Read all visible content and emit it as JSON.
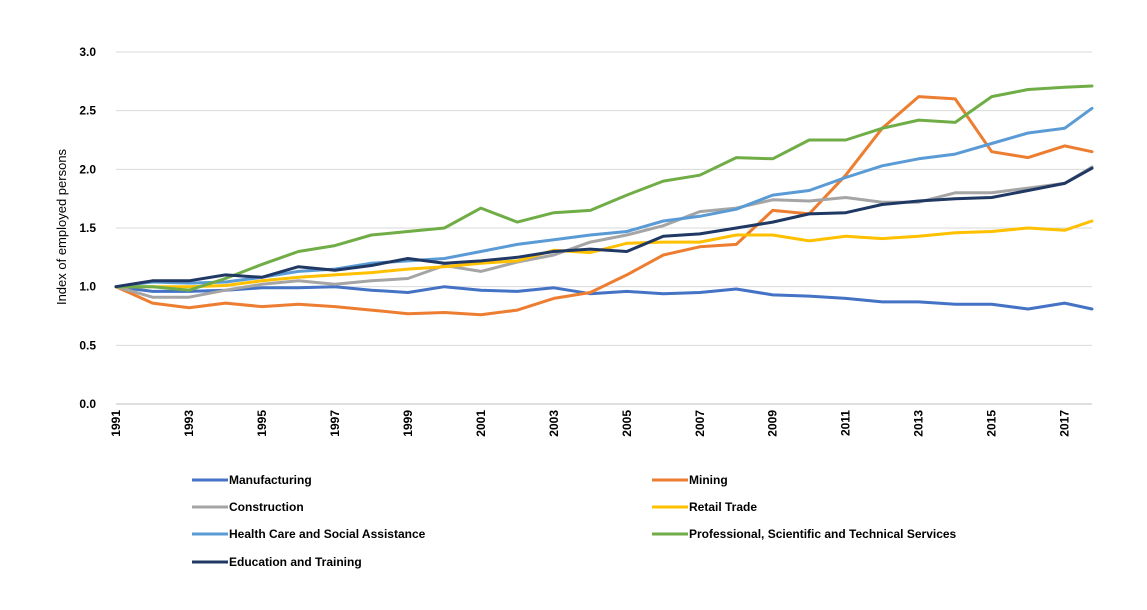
{
  "chart_data": {
    "type": "line",
    "title": "",
    "xlabel": "",
    "ylabel": "Index of employed persons",
    "ylim": [
      0,
      3.0
    ],
    "y_ticks": [
      "0.0",
      "0.5",
      "1.0",
      "1.5",
      "2.0",
      "2.5",
      "3.0"
    ],
    "x_ticks": [
      "1991",
      "1993",
      "1995",
      "1997",
      "1999",
      "2001",
      "2003",
      "2005",
      "2007",
      "2009",
      "2011",
      "2013",
      "2015",
      "2017"
    ],
    "grid": true,
    "legend_position": "bottom",
    "x": [
      1991,
      1992,
      1993,
      1994,
      1995,
      1996,
      1997,
      1998,
      1999,
      2000,
      2001,
      2002,
      2003,
      2004,
      2005,
      2006,
      2007,
      2008,
      2009,
      2010,
      2011,
      2012,
      2013,
      2014,
      2015,
      2016,
      2017,
      2017.75
    ],
    "series": [
      {
        "name": "Manufacturing",
        "color": "#4472C4",
        "values": [
          1.0,
          0.96,
          0.96,
          0.97,
          0.99,
          0.99,
          1.0,
          0.97,
          0.95,
          1.0,
          0.97,
          0.96,
          0.99,
          0.94,
          0.96,
          0.94,
          0.95,
          0.98,
          0.93,
          0.92,
          0.9,
          0.87,
          0.87,
          0.85,
          0.85,
          0.81,
          0.86,
          0.81
        ]
      },
      {
        "name": "Mining",
        "color": "#ED7D31",
        "values": [
          1.0,
          0.86,
          0.82,
          0.86,
          0.83,
          0.85,
          0.83,
          0.8,
          0.77,
          0.78,
          0.76,
          0.8,
          0.9,
          0.95,
          1.1,
          1.27,
          1.34,
          1.36,
          1.65,
          1.62,
          1.95,
          2.35,
          2.62,
          2.6,
          2.15,
          2.1,
          2.2,
          2.15
        ]
      },
      {
        "name": "Construction",
        "color": "#A5A5A5",
        "values": [
          1.0,
          0.91,
          0.91,
          0.97,
          1.02,
          1.05,
          1.02,
          1.05,
          1.07,
          1.18,
          1.13,
          1.21,
          1.27,
          1.38,
          1.44,
          1.52,
          1.64,
          1.67,
          1.74,
          1.73,
          1.76,
          1.72,
          1.72,
          1.8,
          1.8,
          1.84,
          1.88,
          2.02
        ]
      },
      {
        "name": "Retail Trade",
        "color": "#FFC000",
        "values": [
          1.0,
          1.0,
          1.0,
          1.01,
          1.05,
          1.08,
          1.1,
          1.12,
          1.15,
          1.17,
          1.2,
          1.22,
          1.31,
          1.29,
          1.37,
          1.38,
          1.38,
          1.44,
          1.44,
          1.39,
          1.43,
          1.41,
          1.43,
          1.46,
          1.47,
          1.5,
          1.48,
          1.56
        ]
      },
      {
        "name": "Health Care and Social Assistance",
        "color": "#5B9BD5",
        "values": [
          1.0,
          1.04,
          1.03,
          1.04,
          1.08,
          1.13,
          1.15,
          1.2,
          1.22,
          1.24,
          1.3,
          1.36,
          1.4,
          1.44,
          1.47,
          1.56,
          1.6,
          1.66,
          1.78,
          1.82,
          1.93,
          2.03,
          2.09,
          2.13,
          2.22,
          2.31,
          2.35,
          2.52
        ]
      },
      {
        "name": "Professional, Scientific and Technical Services",
        "color": "#70AD47",
        "values": [
          1.0,
          1.0,
          0.97,
          1.07,
          1.19,
          1.3,
          1.35,
          1.44,
          1.47,
          1.5,
          1.67,
          1.55,
          1.63,
          1.65,
          1.78,
          1.9,
          1.95,
          2.1,
          2.09,
          2.25,
          2.25,
          2.35,
          2.42,
          2.4,
          2.62,
          2.68,
          2.7,
          2.71
        ]
      },
      {
        "name": "Education and Training",
        "color": "#203864",
        "values": [
          1.0,
          1.05,
          1.05,
          1.1,
          1.08,
          1.17,
          1.14,
          1.18,
          1.24,
          1.2,
          1.22,
          1.25,
          1.3,
          1.32,
          1.3,
          1.43,
          1.45,
          1.5,
          1.55,
          1.62,
          1.63,
          1.7,
          1.73,
          1.75,
          1.76,
          1.82,
          1.88,
          2.01
        ]
      }
    ]
  }
}
